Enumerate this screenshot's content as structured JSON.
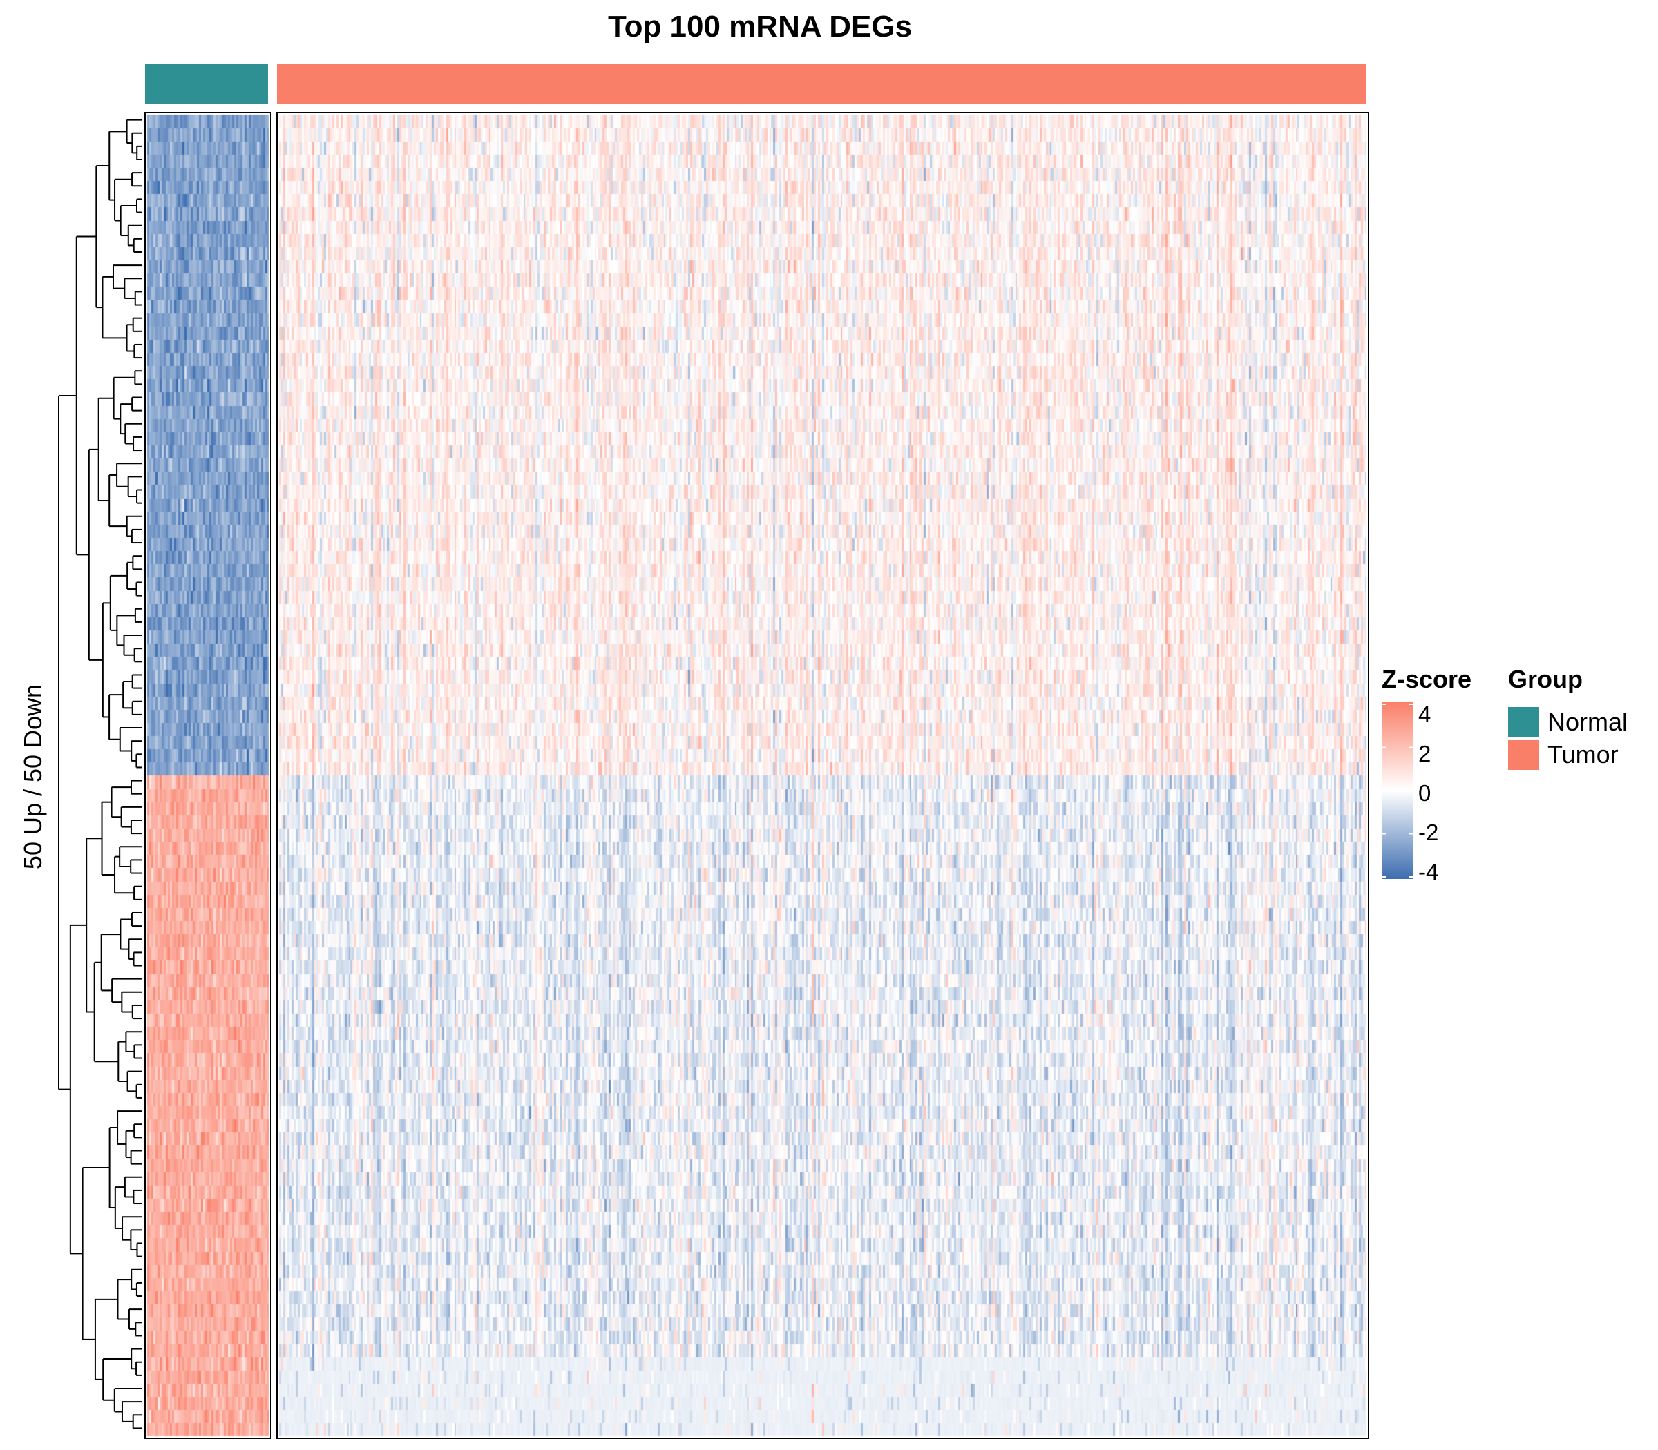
{
  "chart_data": {
    "type": "heatmap",
    "title": "Top 100 mRNA DEGs",
    "row_title": "50 Up / 50 Down",
    "groups": [
      {
        "name": "Normal",
        "color": "#2E9093",
        "n_samples": 59
      },
      {
        "name": "Tumor",
        "color": "#FA7F69",
        "n_samples": 535
      }
    ],
    "n_genes": 100,
    "row_blocks": [
      {
        "name": "",
        "n_rows": 50,
        "normal_mean_z": -2.5,
        "tumor_mean_z": 0.4
      },
      {
        "name": "",
        "n_rows": 50,
        "normal_mean_z": 2.5,
        "tumor_mean_z": -0.4
      }
    ],
    "colorbar": {
      "title": "Z-score",
      "ticks": [
        4,
        2,
        0,
        -2,
        -4
      ],
      "tick_labels": [
        "4",
        "2",
        "0",
        "-2",
        "-4"
      ],
      "range": [
        -4,
        4
      ],
      "colors": {
        "low": "#3C6DB0",
        "mid": "#FFFFFF",
        "high": "#FA7F69"
      }
    },
    "legend": {
      "title": "Group",
      "items": [
        "Normal",
        "Tumor"
      ],
      "placement": "right"
    },
    "row_dendrogram": true,
    "column_dendrogram": false
  }
}
